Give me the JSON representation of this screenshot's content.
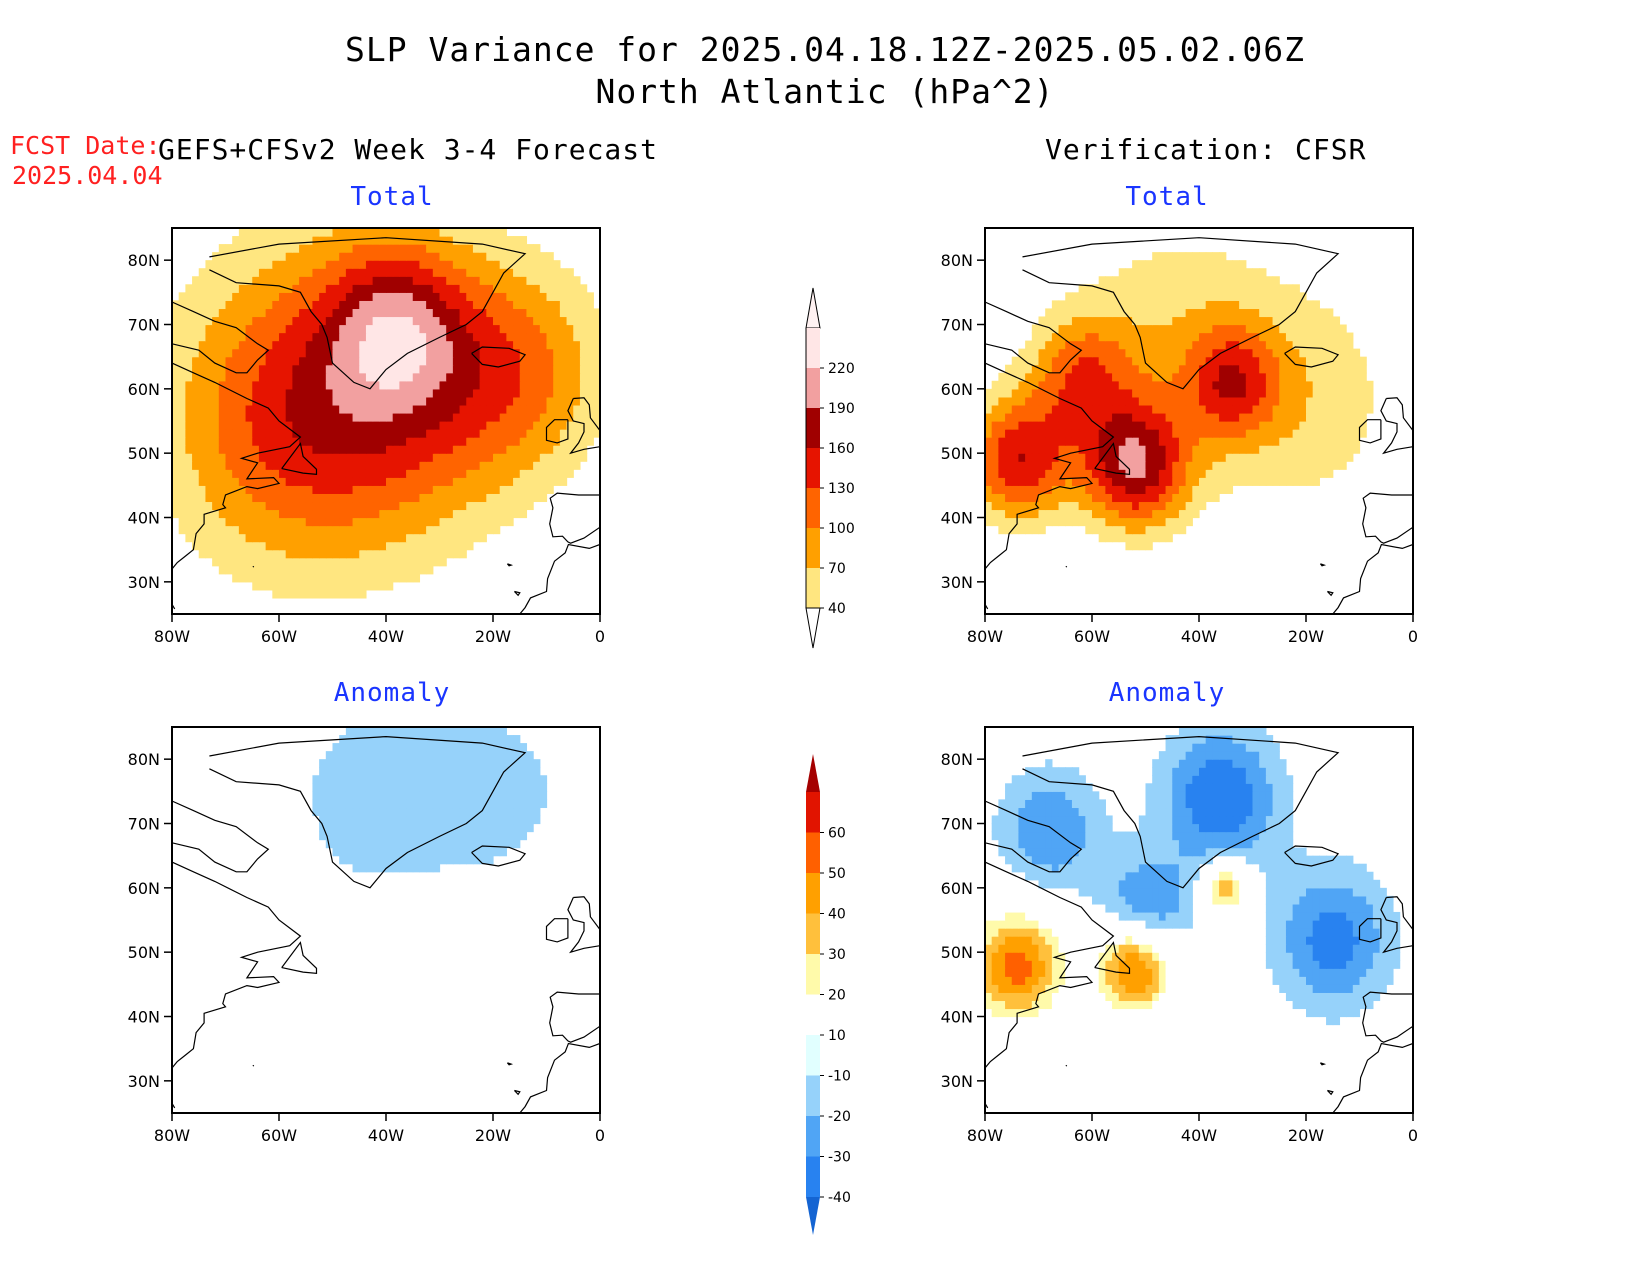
{
  "header": {
    "title_line1": "SLP Variance for 2025.04.18.12Z-2025.05.02.06Z",
    "title_line2": "North Atlantic (hPa^2)",
    "fcst_label": "FCST Date:",
    "fcst_date": "2025.04.04",
    "left_column": "GEFS+CFSv2 Week 3-4 Forecast",
    "right_column": "Verification: CFSR"
  },
  "panels": {
    "fcst_total": "Total",
    "verif_total": "Total",
    "fcst_anomaly": "Anomaly",
    "verif_anomaly": "Anomaly"
  },
  "axes": {
    "lat_labels": [
      "30N",
      "40N",
      "50N",
      "60N",
      "70N",
      "80N"
    ],
    "lat_values": [
      30,
      40,
      50,
      60,
      70,
      80
    ],
    "lon_labels": [
      "80W",
      "60W",
      "40W",
      "20W",
      "0"
    ],
    "lon_values": [
      -80,
      -60,
      -40,
      -20,
      0
    ],
    "lat_range": [
      25,
      85
    ],
    "lon_range": [
      -80,
      0
    ]
  },
  "colorbars": {
    "total": {
      "levels": [
        "40",
        "70",
        "100",
        "130",
        "160",
        "190",
        "220"
      ],
      "colors": [
        "#ffe680",
        "#ffa000",
        "#ff6400",
        "#e61400",
        "#a00000",
        "#f2a0a0",
        "#ffe6e6"
      ]
    },
    "anomaly": {
      "levels": [
        "-40",
        "-30",
        "-20",
        "-10",
        "10",
        "20",
        "30",
        "40",
        "50",
        "60"
      ],
      "colors": [
        "#1464d2",
        "#2882f0",
        "#50a5f5",
        "#96d2fa",
        "#e1ffff",
        "#ffffff",
        "#fffaaa",
        "#ffc03c",
        "#ffa000",
        "#ff6000",
        "#e11400",
        "#a50000"
      ]
    }
  },
  "chart_data": [
    {
      "type": "heatmap",
      "title": "Total",
      "panel": "GEFS+CFSv2 Week 3-4 Forecast",
      "units": "hPa^2",
      "blobs": [
        {
          "lon": -38,
          "lat": 70,
          "value": 95,
          "spread": 9
        },
        {
          "lon": -36,
          "lat": 59,
          "value": 80,
          "spread": 16
        },
        {
          "lon": -60,
          "lat": 54,
          "value": 80,
          "spread": 16
        },
        {
          "lon": -14,
          "lat": 63,
          "value": 80,
          "spread": 12
        },
        {
          "lon": -50,
          "lat": 62,
          "value": 55,
          "spread": 22
        }
      ]
    },
    {
      "type": "heatmap",
      "title": "Total",
      "panel": "Verification: CFSR",
      "units": "hPa^2",
      "blobs": [
        {
          "lon": -52,
          "lat": 48,
          "value": 170,
          "spread": 7
        },
        {
          "lon": -74,
          "lat": 49,
          "value": 150,
          "spread": 7
        },
        {
          "lon": -62,
          "lat": 62,
          "value": 100,
          "spread": 7
        },
        {
          "lon": -34,
          "lat": 61,
          "value": 100,
          "spread": 6
        },
        {
          "lon": -45,
          "lat": 68,
          "value": 55,
          "spread": 15
        },
        {
          "lon": -20,
          "lat": 58,
          "value": 55,
          "spread": 14
        }
      ]
    },
    {
      "type": "heatmap",
      "title": "Anomaly",
      "panel": "GEFS+CFSv2 Week 3-4 Forecast",
      "units": "hPa^2",
      "blobs": [
        {
          "lon": -42,
          "lat": 74,
          "value": -14,
          "spread": 14
        },
        {
          "lon": -18,
          "lat": 75,
          "value": -12,
          "spread": 10
        },
        {
          "lon": -4,
          "lat": 62,
          "value": 12,
          "spread": 4
        }
      ]
    },
    {
      "type": "heatmap",
      "title": "Anomaly",
      "panel": "Verification: CFSR",
      "units": "hPa^2",
      "blobs": [
        {
          "lon": -52,
          "lat": 48,
          "value": 62,
          "spread": 5
        },
        {
          "lon": -74,
          "lat": 48,
          "value": 55,
          "spread": 6
        },
        {
          "lon": -35,
          "lat": 60,
          "value": 45,
          "spread": 3
        },
        {
          "lon": -36,
          "lat": 74,
          "value": -40,
          "spread": 8
        },
        {
          "lon": -50,
          "lat": 56,
          "value": -35,
          "spread": 6
        },
        {
          "lon": -15,
          "lat": 52,
          "value": -35,
          "spread": 8
        },
        {
          "lon": -68,
          "lat": 69,
          "value": -30,
          "spread": 7
        }
      ]
    }
  ]
}
